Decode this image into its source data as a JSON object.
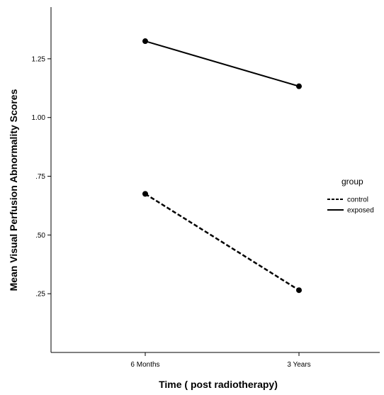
{
  "chart_data": {
    "type": "line",
    "title": "",
    "xlabel": "Time ( post radiotherapy)",
    "ylabel": "Mean Visual Perfusion Abnormality Scores",
    "categories": [
      "6 Months",
      "3 Years"
    ],
    "ylim": [
      0.0,
      1.47
    ],
    "yticks": [
      0.25,
      0.5,
      0.75,
      1.0,
      1.25
    ],
    "ytick_labels": [
      ".25",
      ".50",
      ".75",
      "1.00",
      "1.25"
    ],
    "grid": false,
    "legend": {
      "title": "group",
      "position": "right"
    },
    "series": [
      {
        "name": "control",
        "style": "dashed",
        "values": [
          0.675,
          0.265
        ],
        "color": "#000000"
      },
      {
        "name": "exposed",
        "style": "solid",
        "values": [
          1.325,
          1.133
        ],
        "color": "#000000"
      }
    ]
  }
}
